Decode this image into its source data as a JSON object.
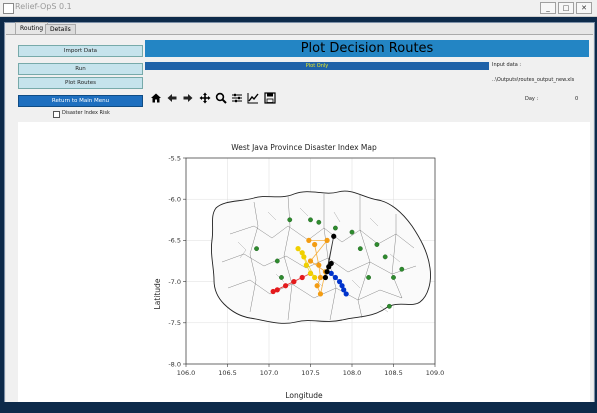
{
  "window": {
    "title": "Relief-OpS 0.1",
    "min_label": "_",
    "max_label": "□",
    "close_label": "✕"
  },
  "tabs": [
    {
      "label": "Routing"
    },
    {
      "label": "Details"
    }
  ],
  "buttons": {
    "import": "Import Data",
    "run": "Run",
    "plot": "Plot Routes",
    "main_menu": "Return to Main Menu"
  },
  "header": {
    "title": "Plot Decision Routes",
    "plot_only": "Plot Only"
  },
  "input_data": {
    "label": "Input data :",
    "path": "..\\Outputs\\routes_output_new.xls"
  },
  "day": {
    "label": "Day :",
    "value": "0"
  },
  "checkbox": {
    "label": "Disaster Index Risk"
  },
  "toolbar_icons": [
    "home-icon",
    "back-icon",
    "forward-icon",
    "pan-icon",
    "zoom-icon",
    "configure-icon",
    "axes-edit-icon",
    "save-icon"
  ],
  "chart_data": {
    "type": "scatter",
    "title": "West Java Province Disaster Index Map",
    "xlabel": "Longitude",
    "ylabel": "Latitude",
    "xlim": [
      106.0,
      109.0
    ],
    "ylim": [
      -8.0,
      -5.5
    ],
    "x_ticks": [
      "106.0",
      "106.5",
      "107.0",
      "107.5",
      "108.0",
      "108.5",
      "109.0"
    ],
    "y_ticks": [
      "-5.5",
      "-6.0",
      "-6.5",
      "-7.0",
      "-7.5",
      "-8.0"
    ],
    "grid": true,
    "series": [
      {
        "color": "#e41a1c",
        "points": [
          [
            107.1,
            -7.1
          ],
          [
            107.2,
            -7.05
          ],
          [
            107.3,
            -7.0
          ],
          [
            107.4,
            -6.95
          ],
          [
            107.5,
            -6.9
          ],
          [
            107.05,
            -7.12
          ]
        ]
      },
      {
        "color": "#f0d000",
        "points": [
          [
            107.35,
            -6.6
          ],
          [
            107.42,
            -6.7
          ],
          [
            107.45,
            -6.8
          ],
          [
            107.5,
            -6.9
          ],
          [
            107.55,
            -6.95
          ],
          [
            107.4,
            -6.65
          ]
        ]
      },
      {
        "color": "#f39c12",
        "points": [
          [
            107.55,
            -6.55
          ],
          [
            107.6,
            -6.8
          ],
          [
            107.62,
            -6.95
          ],
          [
            107.58,
            -7.05
          ],
          [
            107.62,
            -7.15
          ],
          [
            107.68,
            -6.88
          ],
          [
            107.5,
            -6.75
          ],
          [
            107.7,
            -6.5
          ],
          [
            107.48,
            -6.5
          ]
        ]
      },
      {
        "color": "#0033cc",
        "points": [
          [
            107.75,
            -6.9
          ],
          [
            107.8,
            -6.95
          ],
          [
            107.85,
            -7.0
          ],
          [
            107.9,
            -7.1
          ],
          [
            107.93,
            -7.15
          ],
          [
            107.88,
            -7.05
          ]
        ]
      },
      {
        "color": "#000000",
        "points": [
          [
            107.72,
            -6.82
          ],
          [
            107.75,
            -6.78
          ],
          [
            107.7,
            -6.88
          ],
          [
            107.78,
            -6.45
          ],
          [
            107.68,
            -6.95
          ]
        ]
      },
      {
        "color": "#2e8b2e",
        "points": [
          [
            107.25,
            -6.25
          ],
          [
            107.5,
            -6.25
          ],
          [
            107.8,
            -6.35
          ],
          [
            108.0,
            -6.4
          ],
          [
            108.3,
            -6.55
          ],
          [
            108.6,
            -6.85
          ],
          [
            108.5,
            -6.95
          ],
          [
            106.85,
            -6.6
          ],
          [
            107.1,
            -6.75
          ],
          [
            108.4,
            -6.7
          ],
          [
            108.2,
            -6.95
          ],
          [
            107.6,
            -6.28
          ],
          [
            108.45,
            -7.3
          ],
          [
            107.15,
            -6.95
          ],
          [
            108.1,
            -6.6
          ]
        ]
      }
    ]
  }
}
